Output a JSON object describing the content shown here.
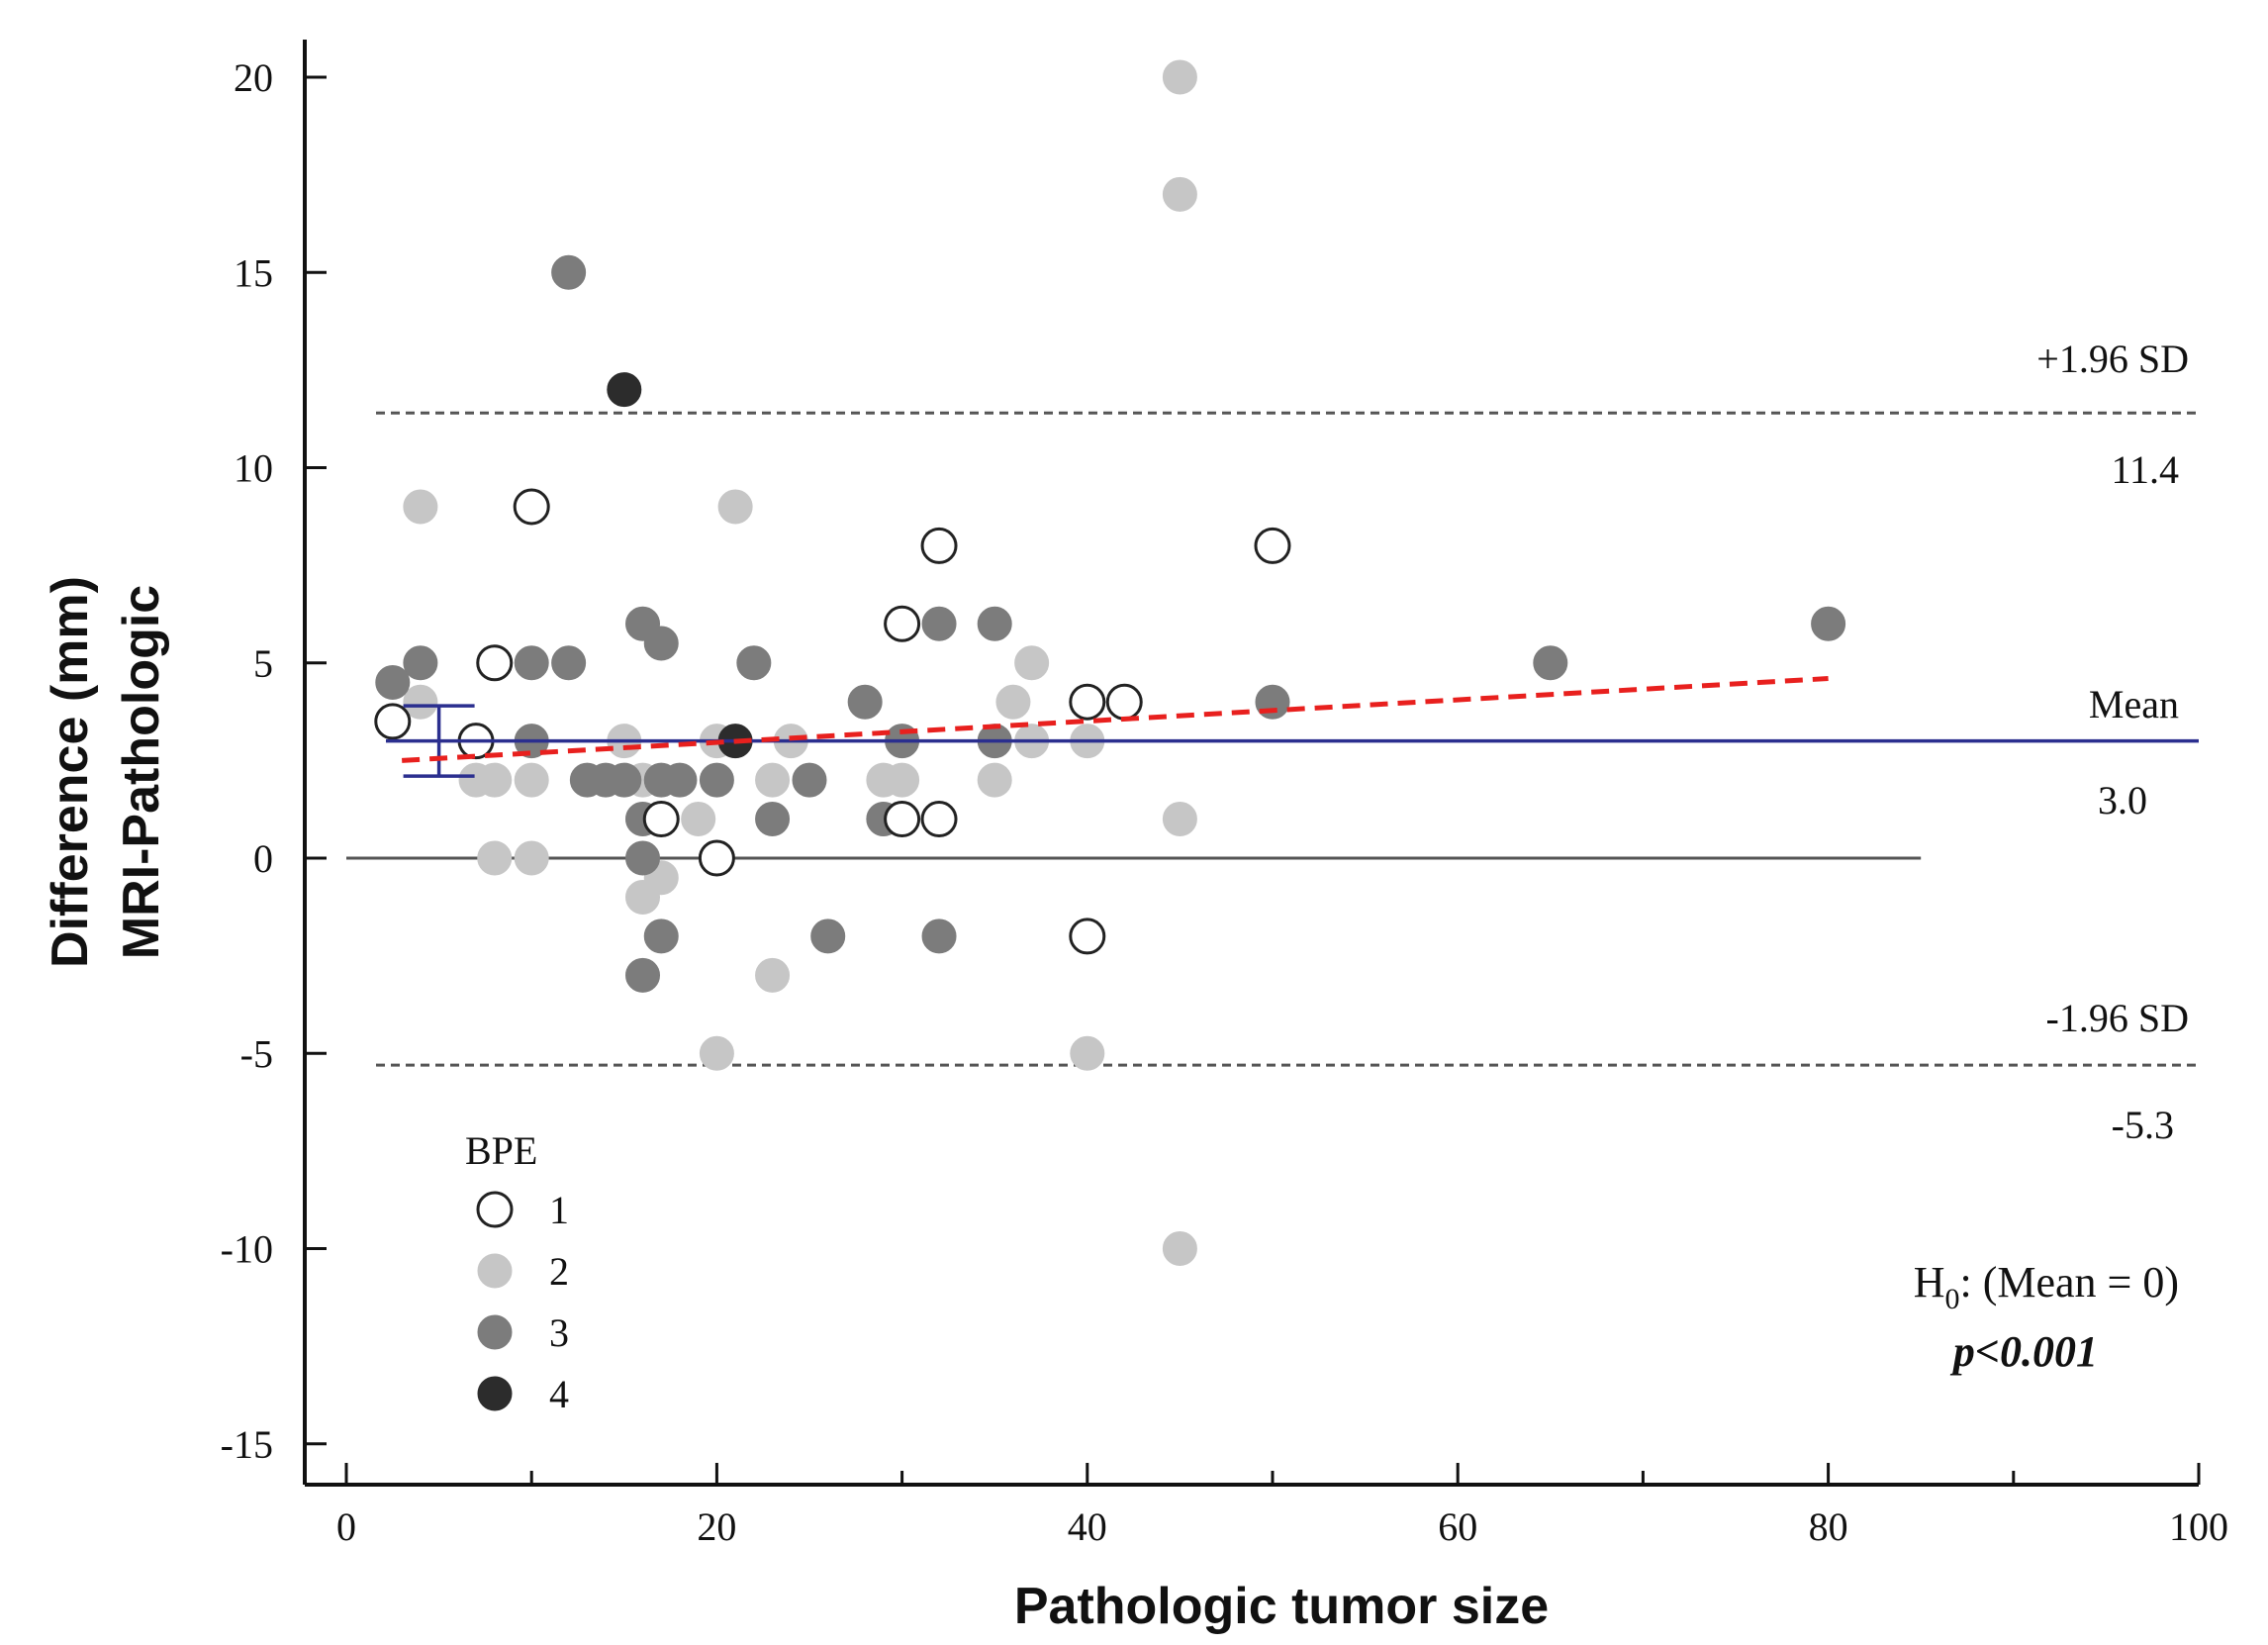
{
  "chart_data": {
    "type": "scatter",
    "title": "",
    "xlabel": "Pathologic tumor size",
    "ylabel_line1": "Difference (mm)",
    "ylabel_line2": "MRI-Pathologic",
    "xlim": [
      0,
      100
    ],
    "ylim": [
      -15,
      21
    ],
    "x_ticks": [
      0,
      20,
      40,
      60,
      80,
      100
    ],
    "x_minor_ticks": [
      10,
      30,
      50,
      70,
      90
    ],
    "y_ticks": [
      -15,
      -10,
      -5,
      0,
      5,
      10,
      15,
      20
    ],
    "x_tick_labels": [
      "0",
      "20",
      "40",
      "60",
      "80",
      "100"
    ],
    "y_tick_labels": [
      "-15",
      "-10",
      "-5",
      "0",
      "5",
      "10",
      "15",
      "20"
    ],
    "grid": false,
    "reference_lines": {
      "mean": {
        "value": 3.0,
        "name": "Mean",
        "value_label": "3.0",
        "color": "#2b2f8f"
      },
      "upper": {
        "value": 11.4,
        "name": "+1.96 SD",
        "value_label": "11.4",
        "color": "#555555"
      },
      "lower": {
        "value": -5.3,
        "name": "-1.96 SD",
        "value_label": "-5.3",
        "color": "#555555"
      },
      "zero": {
        "value": 0,
        "x_end": 85,
        "color": "#555555"
      }
    },
    "mean_ci": {
      "x": 5,
      "low": 2.1,
      "high": 3.9,
      "color": "#2b2f8f"
    },
    "regression_line": {
      "x": [
        3,
        80
      ],
      "y": [
        2.5,
        4.6
      ],
      "color": "#e8201e"
    },
    "legend": {
      "title": "BPE",
      "position": "bottom-left",
      "entries": [
        {
          "label": "1",
          "fill": "#ffffff",
          "stroke": "#222222"
        },
        {
          "label": "2",
          "fill": "#c6c6c6",
          "stroke": "#c6c6c6"
        },
        {
          "label": "3",
          "fill": "#7c7c7c",
          "stroke": "#7c7c7c"
        },
        {
          "label": "4",
          "fill": "#2c2c2c",
          "stroke": "#2c2c2c"
        }
      ]
    },
    "series": [
      {
        "name": "2",
        "points": [
          [
            45,
            20
          ],
          [
            45,
            17
          ],
          [
            4,
            9
          ],
          [
            21,
            9
          ],
          [
            37,
            5
          ],
          [
            36,
            4
          ],
          [
            4,
            4
          ],
          [
            15,
            3
          ],
          [
            20,
            3
          ],
          [
            24,
            3
          ],
          [
            37,
            3
          ],
          [
            40,
            3
          ],
          [
            7,
            2
          ],
          [
            8,
            2
          ],
          [
            10,
            2
          ],
          [
            16,
            2
          ],
          [
            23,
            2
          ],
          [
            29,
            2
          ],
          [
            30,
            2
          ],
          [
            35,
            2
          ],
          [
            16,
            1
          ],
          [
            19,
            1
          ],
          [
            29,
            1
          ],
          [
            45,
            1
          ],
          [
            8,
            0
          ],
          [
            10,
            0
          ],
          [
            17,
            -0.5
          ],
          [
            16,
            -1
          ],
          [
            23,
            -3
          ],
          [
            20,
            -5
          ],
          [
            40,
            -5
          ],
          [
            45,
            -10
          ]
        ]
      },
      {
        "name": "3",
        "points": [
          [
            12,
            15
          ],
          [
            16,
            6
          ],
          [
            32,
            6
          ],
          [
            35,
            6
          ],
          [
            80,
            6
          ],
          [
            17,
            5.5
          ],
          [
            4,
            5
          ],
          [
            10,
            5
          ],
          [
            12,
            5
          ],
          [
            22,
            5
          ],
          [
            65,
            5
          ],
          [
            2.5,
            4.5
          ],
          [
            28,
            4
          ],
          [
            50,
            4
          ],
          [
            10,
            3
          ],
          [
            30,
            3
          ],
          [
            35,
            3
          ],
          [
            13,
            2
          ],
          [
            14,
            2
          ],
          [
            15,
            2
          ],
          [
            17,
            2
          ],
          [
            18,
            2
          ],
          [
            20,
            2
          ],
          [
            25,
            2
          ],
          [
            16,
            1
          ],
          [
            23,
            1
          ],
          [
            29,
            1
          ],
          [
            16,
            0
          ],
          [
            17,
            -2
          ],
          [
            26,
            -2
          ],
          [
            32,
            -2
          ],
          [
            16,
            -3
          ]
        ]
      },
      {
        "name": "4",
        "points": [
          [
            15,
            12
          ],
          [
            21,
            3
          ]
        ]
      },
      {
        "name": "1",
        "points": [
          [
            10,
            9
          ],
          [
            32,
            8
          ],
          [
            50,
            8
          ],
          [
            30,
            6
          ],
          [
            8,
            5
          ],
          [
            40,
            4
          ],
          [
            42,
            4
          ],
          [
            2.5,
            3.5
          ],
          [
            7,
            3
          ],
          [
            17,
            1
          ],
          [
            30,
            1
          ],
          [
            32,
            1
          ],
          [
            20,
            0
          ],
          [
            40,
            -2
          ]
        ]
      }
    ],
    "annotation": {
      "h0_prefix": "H",
      "h0_sub": "0",
      "h0_suffix": ": (Mean = 0)",
      "p_value": "p<0.001"
    }
  }
}
